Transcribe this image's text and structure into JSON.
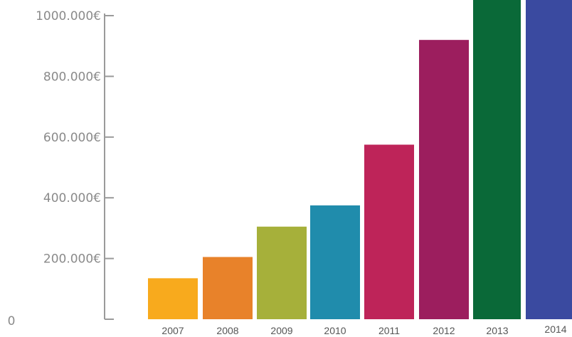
{
  "chart_data": {
    "type": "bar",
    "categories": [
      "2007",
      "2008",
      "2009",
      "2010",
      "2011",
      "2012",
      "2013",
      "2014"
    ],
    "values": [
      135000,
      205000,
      305000,
      375000,
      575000,
      920000,
      1060000,
      1060000
    ],
    "title": "",
    "xlabel": "",
    "ylabel": "",
    "ylim": [
      0,
      1000000
    ],
    "y_ticks": [
      {
        "value": 0,
        "label": "0"
      },
      {
        "value": 200000,
        "label": "200.000€"
      },
      {
        "value": 400000,
        "label": "400.000€"
      },
      {
        "value": 600000,
        "label": "600.000€"
      },
      {
        "value": 800000,
        "label": "800.000€"
      },
      {
        "value": 1000000,
        "label": "1000.000€"
      }
    ],
    "colors": [
      "#f8aa1d",
      "#e8822a",
      "#a6b03a",
      "#208cac",
      "#be2459",
      "#9c1e5e",
      "#0a6938",
      "#3a4aa0"
    ],
    "grid": false,
    "legend": "none"
  }
}
